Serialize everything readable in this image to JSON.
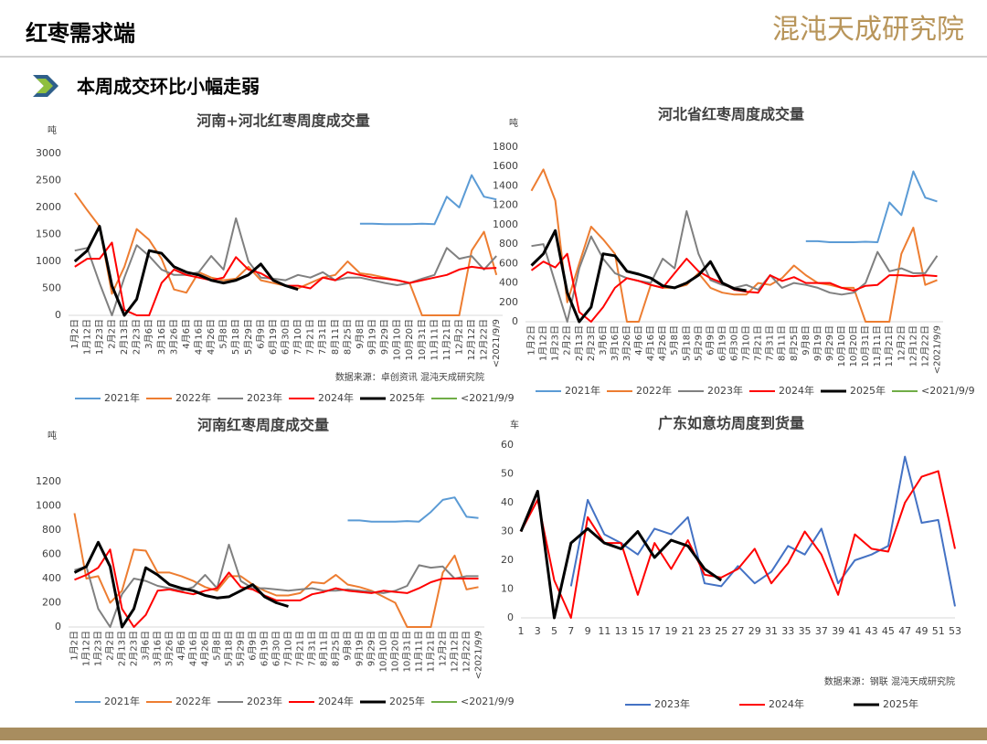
{
  "header": {
    "title": "红枣需求端",
    "logo": "混沌天成研究院"
  },
  "subtitle": "本周成交环比小幅走弱",
  "chart_data": [
    {
      "type": "line",
      "title": "河南+河北红枣周度成交量",
      "y_label": "吨",
      "source": "数据来源：卓创资讯  混沌天成研究院",
      "categories": [
        "1月2日",
        "1月12日",
        "1月23日",
        "2月2日",
        "2月13日",
        "2月23日",
        "3月6日",
        "3月16日",
        "3月26日",
        "4月6日",
        "4月16日",
        "4月26日",
        "5月8日",
        "5月18日",
        "5月29日",
        "6月9日",
        "6月19日",
        "6月30日",
        "7月10日",
        "7月21日",
        "7月31日",
        "8月11日",
        "8月25日",
        "9月8日",
        "9月19日",
        "9月29日",
        "10月10日",
        "10月20日",
        "10月31日",
        "11月11日",
        "11月21日",
        "12月2日",
        "12月12日",
        "12月22日",
        "<2021/9/9"
      ],
      "ylim": [
        0,
        3000
      ],
      "yticks": [
        0,
        500,
        1000,
        1500,
        2000,
        2500,
        3000
      ],
      "grid": false,
      "series": [
        {
          "name": "2021年",
          "color": "#5b9bd5",
          "values": [
            null,
            null,
            null,
            null,
            null,
            null,
            null,
            null,
            null,
            null,
            null,
            null,
            null,
            null,
            null,
            null,
            null,
            null,
            null,
            null,
            null,
            null,
            null,
            1700,
            1700,
            1690,
            1690,
            1690,
            1700,
            1690,
            2200,
            2000,
            2600,
            2200,
            2150
          ]
        },
        {
          "name": "2022年",
          "color": "#ed7d31",
          "values": [
            2270,
            1950,
            1650,
            400,
            900,
            1600,
            1400,
            1050,
            480,
            420,
            800,
            700,
            650,
            680,
            900,
            650,
            600,
            550,
            500,
            600,
            700,
            750,
            1000,
            780,
            750,
            700,
            650,
            600,
            0,
            0,
            0,
            0,
            1200,
            1550,
            750
          ]
        },
        {
          "name": "2023年",
          "color": "#808080",
          "values": [
            1200,
            1250,
            600,
            0,
            700,
            1300,
            1100,
            850,
            750,
            750,
            800,
            1100,
            850,
            1800,
            1000,
            700,
            680,
            650,
            750,
            700,
            800,
            650,
            700,
            700,
            650,
            600,
            560,
            600,
            680,
            750,
            1250,
            1050,
            1100,
            850,
            1100
          ]
        },
        {
          "name": "2024年",
          "color": "#ff0000",
          "values": [
            900,
            1050,
            1050,
            1350,
            100,
            0,
            0,
            600,
            850,
            750,
            700,
            650,
            700,
            1080,
            850,
            780,
            650,
            550,
            550,
            500,
            700,
            650,
            800,
            750,
            700,
            680,
            650,
            600,
            650,
            700,
            750,
            850,
            900,
            870,
            880
          ]
        },
        {
          "name": "2025年",
          "color": "#000000",
          "values": [
            1000,
            1200,
            1650,
            550,
            0,
            300,
            1200,
            1150,
            900,
            800,
            750,
            650,
            600,
            650,
            750,
            950,
            650,
            550,
            480,
            null,
            null,
            null,
            null,
            null,
            null,
            null,
            null,
            null,
            null,
            null,
            null,
            null,
            null,
            null,
            null
          ]
        },
        {
          "name": "<2021/9/9",
          "color": "#70ad47",
          "values": [
            null,
            null,
            null,
            null,
            null,
            null,
            null,
            null,
            null,
            null,
            null,
            null,
            null,
            null,
            null,
            null,
            null,
            null,
            null,
            null,
            null,
            null,
            null,
            null,
            null,
            null,
            null,
            null,
            null,
            null,
            null,
            null,
            null,
            null,
            null
          ]
        }
      ]
    },
    {
      "type": "line",
      "title": "河北省红枣周度成交量",
      "y_label": "吨",
      "categories": [
        "1月2日",
        "1月12日",
        "1月23日",
        "2月2日",
        "2月13日",
        "2月23日",
        "3月6日",
        "3月16日",
        "3月26日",
        "4月6日",
        "4月16日",
        "4月26日",
        "5月8日",
        "5月18日",
        "5月29日",
        "6月9日",
        "6月19日",
        "6月30日",
        "7月10日",
        "7月21日",
        "7月31日",
        "8月11日",
        "8月25日",
        "9月8日",
        "9月19日",
        "9月29日",
        "10月10日",
        "10月20日",
        "10月31日",
        "11月11日",
        "11月21日",
        "12月2日",
        "12月12日",
        "12月22日",
        "<2021/9/9"
      ],
      "ylim": [
        0,
        1800
      ],
      "yticks": [
        0,
        200,
        400,
        600,
        800,
        1000,
        1200,
        1400,
        1600,
        1800
      ],
      "grid": false,
      "series": [
        {
          "name": "2021年",
          "color": "#5b9bd5",
          "values": [
            null,
            null,
            null,
            null,
            null,
            null,
            null,
            null,
            null,
            null,
            null,
            null,
            null,
            null,
            null,
            null,
            null,
            null,
            null,
            null,
            null,
            null,
            null,
            830,
            830,
            820,
            820,
            820,
            825,
            820,
            1230,
            1100,
            1550,
            1280,
            1240
          ]
        },
        {
          "name": "2022年",
          "color": "#ed7d31",
          "values": [
            1350,
            1570,
            1250,
            200,
            600,
            980,
            850,
            700,
            0,
            0,
            380,
            350,
            350,
            380,
            500,
            350,
            300,
            280,
            280,
            400,
            380,
            450,
            580,
            480,
            400,
            380,
            350,
            350,
            0,
            0,
            0,
            700,
            970,
            380,
            430
          ]
        },
        {
          "name": "2023年",
          "color": "#808080",
          "values": [
            780,
            800,
            400,
            0,
            550,
            880,
            650,
            500,
            450,
            420,
            400,
            650,
            550,
            1140,
            700,
            430,
            380,
            350,
            380,
            330,
            480,
            350,
            400,
            380,
            350,
            300,
            280,
            300,
            400,
            720,
            520,
            550,
            500,
            500,
            680
          ]
        },
        {
          "name": "2024年",
          "color": "#ff0000",
          "values": [
            530,
            620,
            560,
            700,
            100,
            0,
            150,
            350,
            450,
            420,
            380,
            350,
            500,
            650,
            520,
            450,
            400,
            330,
            310,
            300,
            480,
            420,
            460,
            400,
            400,
            400,
            350,
            320,
            370,
            380,
            480,
            480,
            470,
            480,
            470
          ]
        },
        {
          "name": "2025年",
          "color": "#000000",
          "values": [
            580,
            700,
            940,
            300,
            0,
            150,
            700,
            680,
            520,
            490,
            450,
            370,
            350,
            400,
            480,
            620,
            400,
            340,
            320,
            null,
            null,
            null,
            null,
            null,
            null,
            null,
            null,
            null,
            null,
            null,
            null,
            null,
            null,
            null,
            null
          ]
        },
        {
          "name": "<2021/9/9",
          "color": "#70ad47",
          "values": [
            null,
            null,
            null,
            null,
            null,
            null,
            null,
            null,
            null,
            null,
            null,
            null,
            null,
            null,
            null,
            null,
            null,
            null,
            null,
            null,
            null,
            null,
            null,
            null,
            null,
            null,
            null,
            null,
            null,
            null,
            null,
            null,
            null,
            null,
            null
          ]
        }
      ]
    },
    {
      "type": "line",
      "title": "河南红枣周度成交量",
      "y_label": "吨",
      "categories": [
        "1月2日",
        "1月12日",
        "1月23日",
        "2月2日",
        "2月13日",
        "2月23日",
        "3月6日",
        "3月16日",
        "3月26日",
        "4月6日",
        "4月16日",
        "4月26日",
        "5月8日",
        "5月18日",
        "5月29日",
        "6月9日",
        "6月19日",
        "6月30日",
        "7月10日",
        "7月21日",
        "7月31日",
        "8月11日",
        "8月25日",
        "9月8日",
        "9月19日",
        "9月29日",
        "10月10日",
        "10月20日",
        "10月31日",
        "11月11日",
        "11月21日",
        "12月2日",
        "12月12日",
        "12月22日",
        "<2021/9/9"
      ],
      "ylim": [
        0,
        1200
      ],
      "yticks": [
        0,
        200,
        400,
        600,
        800,
        1000,
        1200
      ],
      "grid": false,
      "series": [
        {
          "name": "2021年",
          "color": "#5b9bd5",
          "values": [
            null,
            null,
            null,
            null,
            null,
            null,
            null,
            null,
            null,
            null,
            null,
            null,
            null,
            null,
            null,
            null,
            null,
            null,
            null,
            null,
            null,
            null,
            null,
            880,
            880,
            870,
            870,
            870,
            875,
            870,
            950,
            1050,
            1070,
            910,
            900
          ]
        },
        {
          "name": "2022年",
          "color": "#ed7d31",
          "values": [
            940,
            400,
            420,
            200,
            300,
            640,
            630,
            450,
            450,
            420,
            380,
            330,
            300,
            420,
            420,
            350,
            300,
            260,
            260,
            280,
            370,
            360,
            430,
            350,
            330,
            300,
            250,
            200,
            0,
            0,
            0,
            450,
            590,
            310,
            330
          ]
        },
        {
          "name": "2023年",
          "color": "#808080",
          "values": [
            470,
            500,
            150,
            0,
            270,
            400,
            380,
            340,
            320,
            300,
            330,
            430,
            320,
            680,
            380,
            320,
            320,
            310,
            300,
            310,
            320,
            300,
            300,
            310,
            300,
            290,
            280,
            300,
            340,
            510,
            490,
            500,
            400,
            420,
            420
          ]
        },
        {
          "name": "2024年",
          "color": "#ff0000",
          "values": [
            390,
            430,
            490,
            640,
            150,
            0,
            100,
            300,
            310,
            290,
            270,
            300,
            320,
            450,
            330,
            310,
            260,
            220,
            220,
            220,
            270,
            290,
            320,
            300,
            290,
            280,
            300,
            290,
            280,
            320,
            370,
            400,
            400,
            400,
            400
          ]
        },
        {
          "name": "2025年",
          "color": "#000000",
          "values": [
            450,
            500,
            700,
            500,
            0,
            150,
            490,
            430,
            350,
            320,
            300,
            260,
            240,
            250,
            300,
            350,
            250,
            200,
            170,
            null,
            null,
            null,
            null,
            null,
            null,
            null,
            null,
            null,
            null,
            null,
            null,
            null,
            null,
            null,
            null
          ]
        },
        {
          "name": "<2021/9/9",
          "color": "#70ad47",
          "values": [
            null,
            null,
            null,
            null,
            null,
            null,
            null,
            null,
            null,
            null,
            null,
            null,
            null,
            null,
            null,
            null,
            null,
            null,
            null,
            null,
            null,
            null,
            null,
            null,
            null,
            null,
            null,
            null,
            null,
            null,
            null,
            null,
            null,
            null,
            null
          ]
        }
      ]
    },
    {
      "type": "line",
      "title": "广东如意坊周度到货量",
      "y_label": "车",
      "source": "数据来源：钢联  混沌天成研究院",
      "x": [
        1,
        3,
        5,
        7,
        9,
        11,
        13,
        15,
        17,
        19,
        21,
        23,
        25,
        27,
        29,
        31,
        33,
        35,
        37,
        39,
        41,
        43,
        45,
        47,
        49,
        51,
        53
      ],
      "xlim": [
        1,
        53
      ],
      "xticks": [
        1,
        3,
        5,
        7,
        9,
        11,
        13,
        15,
        17,
        19,
        21,
        23,
        25,
        27,
        29,
        31,
        33,
        35,
        37,
        39,
        41,
        43,
        45,
        47,
        49,
        51,
        53
      ],
      "ylim": [
        0,
        60
      ],
      "yticks": [
        0,
        10,
        20,
        30,
        40,
        50,
        60
      ],
      "grid": false,
      "series": [
        {
          "name": "2023年",
          "color": "#4472c4",
          "values": [
            null,
            null,
            null,
            11,
            41,
            29,
            26,
            22,
            31,
            29,
            35,
            12,
            11,
            18,
            12,
            16,
            25,
            22,
            31,
            12,
            20,
            22,
            25,
            56,
            33,
            34,
            4
          ]
        },
        {
          "name": "2024年",
          "color": "#ff0000",
          "values": [
            30,
            41,
            13,
            0,
            35,
            26,
            26,
            8,
            26,
            17,
            27,
            15,
            14,
            17,
            24,
            12,
            19,
            30,
            22,
            8,
            29,
            24,
            23,
            40,
            49,
            51,
            24
          ]
        },
        {
          "name": "2025年",
          "color": "#000000",
          "values": [
            30,
            44,
            0,
            26,
            31,
            26,
            24,
            30,
            21,
            27,
            25,
            17,
            13,
            null,
            null,
            null,
            null,
            null,
            null,
            null,
            null,
            null,
            null,
            null,
            null,
            null,
            null
          ]
        }
      ]
    }
  ]
}
